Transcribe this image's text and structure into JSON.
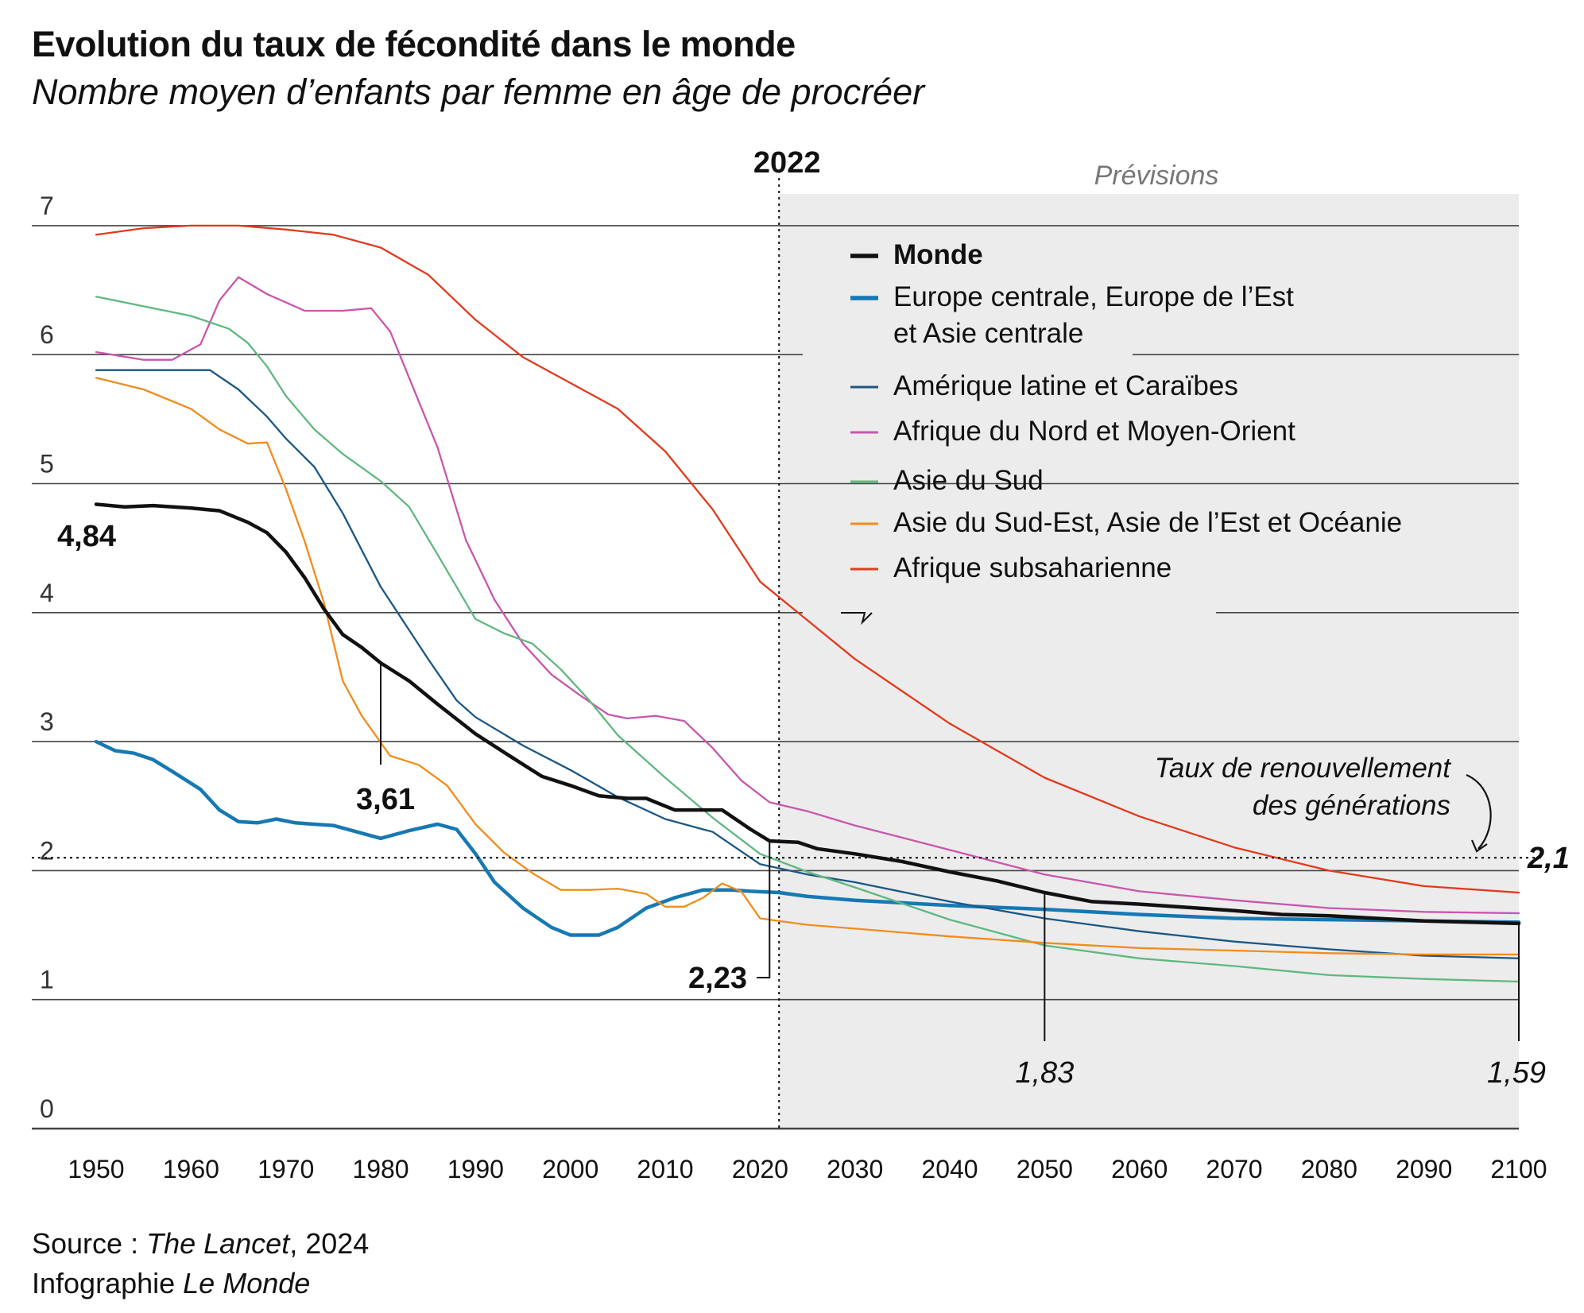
{
  "header": {
    "title": "Evolution du taux de fécondité dans le monde",
    "subtitle": "Nombre moyen d’enfants par femme en âge de procréer"
  },
  "footer": {
    "source_prefix": "Source : ",
    "source_name": "The Lancet",
    "source_year": ", 2024",
    "credit_prefix": "Infographie ",
    "credit_name": "Le Monde"
  },
  "colors": {
    "Monde": "#111111",
    "Europe centrale, Europe de l’Est et Asie centrale": "#1679b4",
    "Amérique latine et Caraïbes": "#1a5785",
    "Afrique du Nord et Moyen-Orient": "#c956ad",
    "Asie du Sud": "#5fb880",
    "Asie du Sud-Est, Asie de l’Est et Océanie": "#f28c1c",
    "Afrique subsaharienne": "#e23a1d",
    "forecast_bg": "#ececec",
    "grid": "#444444"
  },
  "chart_data": {
    "type": "line",
    "xlim": [
      1950,
      2100
    ],
    "ylim": [
      0,
      7
    ],
    "x_ticks": [
      "1950",
      "1960",
      "1970",
      "1980",
      "1990",
      "2000",
      "2010",
      "2020",
      "2030",
      "2040",
      "2050",
      "2060",
      "2070",
      "2080",
      "2090",
      "2100"
    ],
    "y_ticks": [
      "0",
      "1",
      "2",
      "3",
      "4",
      "5",
      "6",
      "7"
    ],
    "grid": true,
    "forecast": {
      "start": 2022,
      "year_label": "2022",
      "label": "Prévisions"
    },
    "replacement": {
      "value": 2.1,
      "label_line1": "Taux de renouvellement",
      "label_line2": "des générations",
      "value_label": "2,1"
    },
    "legend_position": "top-right",
    "legend": [
      {
        "name": "Monde",
        "line1": "Monde",
        "line2": ""
      },
      {
        "name": "Europe centrale, Europe de l’Est et Asie centrale",
        "line1": "Europe centrale, Europe de l’Est",
        "line2": "et Asie centrale"
      },
      {
        "name": "Amérique latine et Caraïbes",
        "line1": "Amérique latine et Caraïbes",
        "line2": ""
      },
      {
        "name": "Afrique du Nord et Moyen-Orient",
        "line1": "Afrique du Nord et Moyen-Orient",
        "line2": ""
      },
      {
        "name": "Asie du Sud",
        "line1": "Asie du Sud",
        "line2": ""
      },
      {
        "name": "Asie du Sud-Est, Asie de l’Est et Océanie",
        "line1": "Asie du Sud-Est, Asie de l’Est et Océanie",
        "line2": ""
      },
      {
        "name": "Afrique subsaharienne",
        "line1": "Afrique subsaharienne",
        "line2": ""
      }
    ],
    "annotations": [
      {
        "x": 1950,
        "y": 4.84,
        "label": "4,84"
      },
      {
        "x": 1980,
        "y": 3.61,
        "label": "3,61"
      },
      {
        "x": 2022,
        "y": 2.23,
        "label": "2,23"
      },
      {
        "x": 2050,
        "y": 1.83,
        "label": "1,83"
      },
      {
        "x": 2100,
        "y": 1.59,
        "label": "1,59"
      }
    ],
    "series": [
      {
        "name": "Monde",
        "points": [
          [
            1950,
            4.84
          ],
          [
            1953,
            4.82
          ],
          [
            1956,
            4.83
          ],
          [
            1960,
            4.81
          ],
          [
            1963,
            4.79
          ],
          [
            1966,
            4.7
          ],
          [
            1968,
            4.62
          ],
          [
            1970,
            4.47
          ],
          [
            1972,
            4.27
          ],
          [
            1974,
            4.03
          ],
          [
            1976,
            3.83
          ],
          [
            1978,
            3.73
          ],
          [
            1980,
            3.61
          ],
          [
            1983,
            3.47
          ],
          [
            1986,
            3.29
          ],
          [
            1990,
            3.06
          ],
          [
            1994,
            2.87
          ],
          [
            1997,
            2.73
          ],
          [
            2000,
            2.66
          ],
          [
            2003,
            2.58
          ],
          [
            2006,
            2.56
          ],
          [
            2008,
            2.56
          ],
          [
            2011,
            2.47
          ],
          [
            2013,
            2.47
          ],
          [
            2016,
            2.47
          ],
          [
            2019,
            2.32
          ],
          [
            2021,
            2.23
          ],
          [
            2024,
            2.22
          ],
          [
            2026,
            2.17
          ],
          [
            2030,
            2.13
          ],
          [
            2035,
            2.07
          ],
          [
            2040,
            1.99
          ],
          [
            2045,
            1.92
          ],
          [
            2050,
            1.83
          ],
          [
            2055,
            1.76
          ],
          [
            2060,
            1.74
          ],
          [
            2070,
            1.69
          ],
          [
            2075,
            1.66
          ],
          [
            2080,
            1.65
          ],
          [
            2090,
            1.61
          ],
          [
            2100,
            1.59
          ]
        ]
      },
      {
        "name": "Europe centrale, Europe de l’Est et Asie centrale",
        "points": [
          [
            1950,
            3.0
          ],
          [
            1952,
            2.93
          ],
          [
            1954,
            2.91
          ],
          [
            1956,
            2.86
          ],
          [
            1958,
            2.77
          ],
          [
            1961,
            2.63
          ],
          [
            1963,
            2.47
          ],
          [
            1965,
            2.38
          ],
          [
            1967,
            2.37
          ],
          [
            1969,
            2.4
          ],
          [
            1971,
            2.37
          ],
          [
            1975,
            2.35
          ],
          [
            1980,
            2.25
          ],
          [
            1983,
            2.31
          ],
          [
            1986,
            2.36
          ],
          [
            1988,
            2.32
          ],
          [
            1990,
            2.13
          ],
          [
            1992,
            1.91
          ],
          [
            1995,
            1.71
          ],
          [
            1998,
            1.56
          ],
          [
            2000,
            1.5
          ],
          [
            2003,
            1.5
          ],
          [
            2005,
            1.56
          ],
          [
            2008,
            1.71
          ],
          [
            2011,
            1.79
          ],
          [
            2014,
            1.85
          ],
          [
            2017,
            1.85
          ],
          [
            2019,
            1.84
          ],
          [
            2022,
            1.83
          ],
          [
            2025,
            1.8
          ],
          [
            2030,
            1.77
          ],
          [
            2040,
            1.73
          ],
          [
            2050,
            1.7
          ],
          [
            2060,
            1.66
          ],
          [
            2070,
            1.63
          ],
          [
            2080,
            1.62
          ],
          [
            2090,
            1.61
          ],
          [
            2100,
            1.6
          ]
        ]
      },
      {
        "name": "Amérique latine et Caraïbes",
        "points": [
          [
            1950,
            5.88
          ],
          [
            1962,
            5.88
          ],
          [
            1965,
            5.73
          ],
          [
            1968,
            5.52
          ],
          [
            1970,
            5.35
          ],
          [
            1973,
            5.13
          ],
          [
            1976,
            4.77
          ],
          [
            1980,
            4.2
          ],
          [
            1985,
            3.64
          ],
          [
            1988,
            3.32
          ],
          [
            1990,
            3.19
          ],
          [
            1995,
            2.97
          ],
          [
            2000,
            2.78
          ],
          [
            2005,
            2.57
          ],
          [
            2010,
            2.4
          ],
          [
            2015,
            2.3
          ],
          [
            2020,
            2.05
          ],
          [
            2025,
            1.97
          ],
          [
            2030,
            1.91
          ],
          [
            2040,
            1.76
          ],
          [
            2050,
            1.63
          ],
          [
            2060,
            1.53
          ],
          [
            2070,
            1.45
          ],
          [
            2080,
            1.39
          ],
          [
            2090,
            1.34
          ],
          [
            2100,
            1.32
          ]
        ]
      },
      {
        "name": "Afrique du Nord et Moyen-Orient",
        "points": [
          [
            1950,
            6.02
          ],
          [
            1955,
            5.96
          ],
          [
            1958,
            5.96
          ],
          [
            1961,
            6.08
          ],
          [
            1963,
            6.42
          ],
          [
            1965,
            6.6
          ],
          [
            1968,
            6.47
          ],
          [
            1972,
            6.34
          ],
          [
            1976,
            6.34
          ],
          [
            1979,
            6.36
          ],
          [
            1981,
            6.18
          ],
          [
            1983,
            5.82
          ],
          [
            1986,
            5.28
          ],
          [
            1989,
            4.56
          ],
          [
            1992,
            4.1
          ],
          [
            1995,
            3.76
          ],
          [
            1998,
            3.52
          ],
          [
            2001,
            3.36
          ],
          [
            2004,
            3.21
          ],
          [
            2006,
            3.18
          ],
          [
            2009,
            3.2
          ],
          [
            2012,
            3.16
          ],
          [
            2015,
            2.95
          ],
          [
            2018,
            2.7
          ],
          [
            2021,
            2.53
          ],
          [
            2025,
            2.46
          ],
          [
            2030,
            2.35
          ],
          [
            2040,
            2.16
          ],
          [
            2050,
            1.97
          ],
          [
            2060,
            1.84
          ],
          [
            2070,
            1.77
          ],
          [
            2080,
            1.71
          ],
          [
            2090,
            1.68
          ],
          [
            2100,
            1.67
          ]
        ]
      },
      {
        "name": "Asie du Sud",
        "points": [
          [
            1950,
            6.45
          ],
          [
            1960,
            6.3
          ],
          [
            1964,
            6.2
          ],
          [
            1966,
            6.09
          ],
          [
            1968,
            5.91
          ],
          [
            1970,
            5.68
          ],
          [
            1973,
            5.42
          ],
          [
            1976,
            5.23
          ],
          [
            1980,
            5.02
          ],
          [
            1983,
            4.82
          ],
          [
            1986,
            4.45
          ],
          [
            1990,
            3.95
          ],
          [
            1993,
            3.84
          ],
          [
            1996,
            3.76
          ],
          [
            1999,
            3.56
          ],
          [
            2002,
            3.32
          ],
          [
            2005,
            3.05
          ],
          [
            2010,
            2.72
          ],
          [
            2015,
            2.41
          ],
          [
            2020,
            2.13
          ],
          [
            2025,
            1.99
          ],
          [
            2030,
            1.87
          ],
          [
            2040,
            1.62
          ],
          [
            2050,
            1.42
          ],
          [
            2060,
            1.32
          ],
          [
            2070,
            1.26
          ],
          [
            2080,
            1.19
          ],
          [
            2090,
            1.16
          ],
          [
            2100,
            1.14
          ]
        ]
      },
      {
        "name": "Asie du Sud-Est, Asie de l’Est et Océanie",
        "points": [
          [
            1950,
            5.82
          ],
          [
            1955,
            5.73
          ],
          [
            1960,
            5.58
          ],
          [
            1963,
            5.42
          ],
          [
            1966,
            5.31
          ],
          [
            1968,
            5.32
          ],
          [
            1970,
            4.96
          ],
          [
            1972,
            4.55
          ],
          [
            1974,
            4.08
          ],
          [
            1976,
            3.47
          ],
          [
            1978,
            3.2
          ],
          [
            1981,
            2.89
          ],
          [
            1984,
            2.82
          ],
          [
            1987,
            2.66
          ],
          [
            1990,
            2.36
          ],
          [
            1993,
            2.14
          ],
          [
            1996,
            1.98
          ],
          [
            1999,
            1.85
          ],
          [
            2002,
            1.85
          ],
          [
            2005,
            1.86
          ],
          [
            2008,
            1.82
          ],
          [
            2010,
            1.72
          ],
          [
            2012,
            1.72
          ],
          [
            2014,
            1.79
          ],
          [
            2016,
            1.9
          ],
          [
            2018,
            1.84
          ],
          [
            2020,
            1.63
          ],
          [
            2025,
            1.58
          ],
          [
            2030,
            1.55
          ],
          [
            2040,
            1.49
          ],
          [
            2050,
            1.44
          ],
          [
            2060,
            1.4
          ],
          [
            2070,
            1.38
          ],
          [
            2080,
            1.36
          ],
          [
            2090,
            1.35
          ],
          [
            2100,
            1.35
          ]
        ]
      },
      {
        "name": "Afrique subsaharienne",
        "points": [
          [
            1950,
            6.93
          ],
          [
            1955,
            6.98
          ],
          [
            1960,
            7.0
          ],
          [
            1965,
            7.0
          ],
          [
            1970,
            6.97
          ],
          [
            1975,
            6.93
          ],
          [
            1980,
            6.83
          ],
          [
            1985,
            6.62
          ],
          [
            1990,
            6.27
          ],
          [
            1995,
            5.98
          ],
          [
            2000,
            5.78
          ],
          [
            2005,
            5.58
          ],
          [
            2010,
            5.25
          ],
          [
            2015,
            4.8
          ],
          [
            2020,
            4.24
          ],
          [
            2025,
            3.94
          ],
          [
            2030,
            3.64
          ],
          [
            2040,
            3.14
          ],
          [
            2050,
            2.72
          ],
          [
            2060,
            2.42
          ],
          [
            2070,
            2.18
          ],
          [
            2080,
            2.0
          ],
          [
            2090,
            1.88
          ],
          [
            2100,
            1.83
          ]
        ]
      }
    ]
  }
}
